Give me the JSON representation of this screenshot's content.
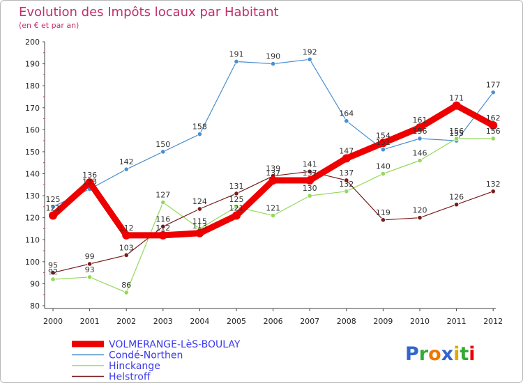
{
  "chart_data": {
    "type": "line",
    "title": "Evolution des Impôts locaux par Habitant",
    "subtitle": "(en € et par an)",
    "xlabel": "",
    "ylabel": "",
    "x": [
      "2000",
      "2001",
      "2002",
      "2003",
      "2004",
      "2005",
      "2006",
      "2007",
      "2008",
      "2009",
      "2010",
      "2011",
      "2012"
    ],
    "ylim": [
      80,
      200
    ],
    "yticks": [
      80,
      90,
      100,
      110,
      120,
      130,
      140,
      150,
      160,
      170,
      180,
      190,
      200
    ],
    "grid": false,
    "legend_position": "bottom-left",
    "series": [
      {
        "name": "Condé-Northen",
        "color": "#4a8fcf",
        "values": [
          125,
          133,
          142,
          150,
          158,
          191,
          190,
          192,
          164,
          151,
          156,
          155,
          177
        ]
      },
      {
        "name": "Hinckange",
        "color": "#93d95a",
        "values": [
          92,
          93,
          86,
          127,
          115,
          125,
          121,
          130,
          132,
          140,
          146,
          156,
          156
        ]
      },
      {
        "name": "Helstroff",
        "color": "#7a1b1b",
        "values": [
          95,
          99,
          103,
          116,
          124,
          131,
          139,
          141,
          137,
          119,
          120,
          126,
          132
        ]
      },
      {
        "name": "VOLMERANGE-LèS-BOULAY",
        "color": "#ee0000",
        "values": [
          121,
          136,
          112,
          112,
          113,
          121,
          137,
          137,
          147,
          154,
          161,
          171,
          162
        ]
      }
    ]
  },
  "logo": {
    "text": "Proxiti",
    "colors": [
      "#3366cc",
      "#33aa33",
      "#ee7700",
      "#3366cc",
      "#ddaa00",
      "#33aa33",
      "#ee0000"
    ]
  }
}
